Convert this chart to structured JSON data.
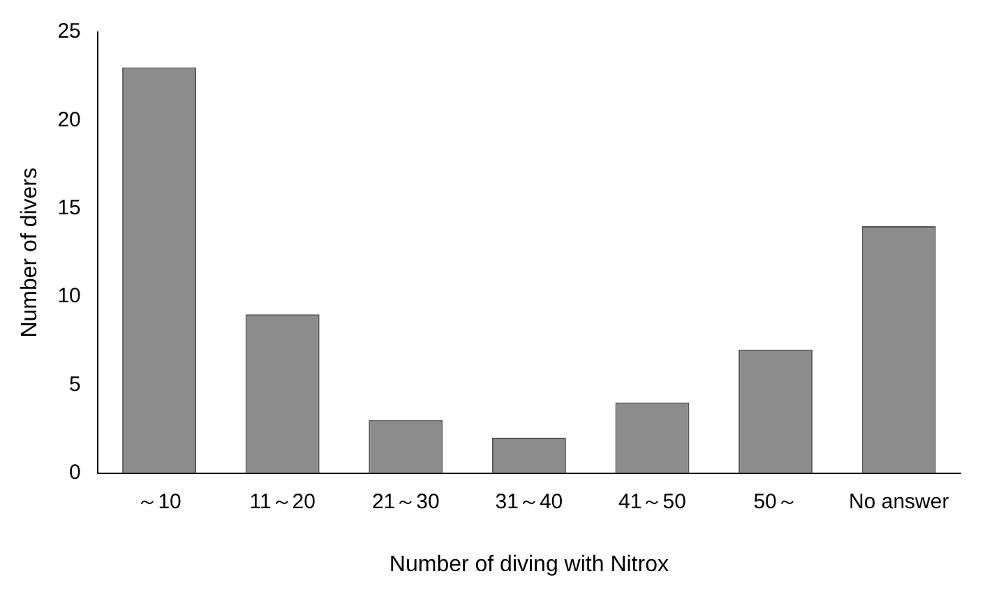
{
  "chart_data": {
    "type": "bar",
    "xlabel": "Number of diving with Nitrox",
    "ylabel": "Number of divers",
    "categories": [
      "～10",
      "11～20",
      "21～30",
      "31～40",
      "41～50",
      "50～",
      "No answer"
    ],
    "values": [
      23,
      9,
      3,
      2,
      4,
      7,
      14
    ],
    "color": "#8c8c8c",
    "ylim": [
      0,
      25
    ],
    "yticks": [
      0,
      5,
      10,
      15,
      20,
      25
    ],
    "grid": false,
    "legend": false
  }
}
